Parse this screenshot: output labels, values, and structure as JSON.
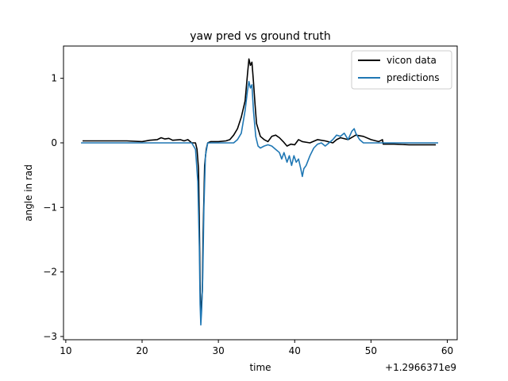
{
  "chart_data": {
    "type": "line",
    "title": "yaw pred vs ground truth",
    "xlabel": "time",
    "ylabel": "angle in rad",
    "x_offset_label": "+1.2966371e9",
    "xlim": [
      9.7,
      61.3
    ],
    "ylim": [
      -3.05,
      1.5
    ],
    "xticks": [
      10,
      20,
      30,
      40,
      50,
      60
    ],
    "yticks": [
      1,
      0,
      -1,
      -2,
      -3
    ],
    "xtick_labels": [
      "10",
      "20",
      "30",
      "40",
      "50",
      "60"
    ],
    "ytick_labels": [
      "1",
      "0",
      "−1",
      "−2",
      "−3"
    ],
    "legend_position": "top-right",
    "grid": false,
    "series": [
      {
        "name": "vicon data",
        "color": "#000000",
        "points": [
          [
            12.2,
            0.03
          ],
          [
            15,
            0.03
          ],
          [
            18,
            0.03
          ],
          [
            20,
            0.02
          ],
          [
            21,
            0.04
          ],
          [
            22,
            0.05
          ],
          [
            22.5,
            0.08
          ],
          [
            23,
            0.06
          ],
          [
            23.5,
            0.07
          ],
          [
            24,
            0.04
          ],
          [
            25,
            0.05
          ],
          [
            25.5,
            0.03
          ],
          [
            26,
            0.05
          ],
          [
            26.5,
            0.0
          ],
          [
            27,
            0.0
          ],
          [
            27.2,
            -0.1
          ],
          [
            27.4,
            -0.4
          ],
          [
            27.5,
            -1.2
          ],
          [
            27.6,
            -2.2
          ],
          [
            27.7,
            -2.7
          ],
          [
            27.8,
            -2.5
          ],
          [
            27.9,
            -2.3
          ],
          [
            28,
            -1.4
          ],
          [
            28.2,
            -0.35
          ],
          [
            28.4,
            -0.1
          ],
          [
            28.6,
            0.0
          ],
          [
            29,
            0.02
          ],
          [
            30,
            0.02
          ],
          [
            31,
            0.03
          ],
          [
            31.5,
            0.05
          ],
          [
            32,
            0.12
          ],
          [
            32.5,
            0.22
          ],
          [
            33,
            0.4
          ],
          [
            33.5,
            0.65
          ],
          [
            33.8,
            1.05
          ],
          [
            34,
            1.3
          ],
          [
            34.2,
            1.2
          ],
          [
            34.4,
            1.25
          ],
          [
            34.6,
            0.95
          ],
          [
            34.8,
            0.6
          ],
          [
            35,
            0.3
          ],
          [
            35.5,
            0.1
          ],
          [
            36,
            0.05
          ],
          [
            36.5,
            0.02
          ],
          [
            37,
            0.1
          ],
          [
            37.5,
            0.12
          ],
          [
            38,
            0.08
          ],
          [
            38.5,
            0.02
          ],
          [
            39,
            -0.05
          ],
          [
            39.5,
            -0.02
          ],
          [
            40,
            -0.03
          ],
          [
            40.5,
            0.05
          ],
          [
            41,
            0.02
          ],
          [
            42,
            0.0
          ],
          [
            43,
            0.05
          ],
          [
            44,
            0.03
          ],
          [
            45,
            0.0
          ],
          [
            45.5,
            0.05
          ],
          [
            46,
            0.08
          ],
          [
            47,
            0.05
          ],
          [
            48,
            0.12
          ],
          [
            49,
            0.1
          ],
          [
            50,
            0.05
          ],
          [
            51,
            0.02
          ],
          [
            51.5,
            0.05
          ],
          [
            51.6,
            -0.02
          ],
          [
            53,
            -0.02
          ],
          [
            55,
            -0.03
          ],
          [
            57,
            -0.03
          ],
          [
            58.5,
            -0.03
          ]
        ]
      },
      {
        "name": "predictions",
        "color": "#1f77b4",
        "points": [
          [
            12,
            0.0
          ],
          [
            16,
            0.0
          ],
          [
            20,
            0.0
          ],
          [
            24,
            0.0
          ],
          [
            26.5,
            0.0
          ],
          [
            27,
            -0.1
          ],
          [
            27.3,
            -0.6
          ],
          [
            27.5,
            -1.6
          ],
          [
            27.6,
            -2.5
          ],
          [
            27.7,
            -2.82
          ],
          [
            27.8,
            -2.6
          ],
          [
            27.95,
            -2.1
          ],
          [
            28.1,
            -1.0
          ],
          [
            28.3,
            -0.2
          ],
          [
            28.6,
            0.0
          ],
          [
            29,
            0.0
          ],
          [
            30,
            0.0
          ],
          [
            31,
            0.0
          ],
          [
            32,
            0.0
          ],
          [
            32.5,
            0.05
          ],
          [
            33,
            0.15
          ],
          [
            33.5,
            0.5
          ],
          [
            33.8,
            0.8
          ],
          [
            34,
            0.95
          ],
          [
            34.2,
            0.85
          ],
          [
            34.4,
            0.9
          ],
          [
            34.6,
            0.5
          ],
          [
            34.9,
            0.1
          ],
          [
            35.2,
            -0.05
          ],
          [
            35.5,
            -0.08
          ],
          [
            36,
            -0.05
          ],
          [
            36.5,
            -0.03
          ],
          [
            37,
            -0.05
          ],
          [
            37.5,
            -0.1
          ],
          [
            38,
            -0.15
          ],
          [
            38.3,
            -0.25
          ],
          [
            38.6,
            -0.15
          ],
          [
            39,
            -0.3
          ],
          [
            39.3,
            -0.2
          ],
          [
            39.6,
            -0.35
          ],
          [
            39.9,
            -0.2
          ],
          [
            40.2,
            -0.3
          ],
          [
            40.5,
            -0.25
          ],
          [
            40.8,
            -0.4
          ],
          [
            41,
            -0.52
          ],
          [
            41.2,
            -0.4
          ],
          [
            41.5,
            -0.35
          ],
          [
            42,
            -0.2
          ],
          [
            42.5,
            -0.08
          ],
          [
            43,
            -0.02
          ],
          [
            43.5,
            0.0
          ],
          [
            44,
            -0.05
          ],
          [
            44.5,
            0.0
          ],
          [
            45,
            0.05
          ],
          [
            45.5,
            0.12
          ],
          [
            46,
            0.1
          ],
          [
            46.5,
            0.15
          ],
          [
            47,
            0.05
          ],
          [
            47.5,
            0.18
          ],
          [
            47.8,
            0.22
          ],
          [
            48,
            0.15
          ],
          [
            48.5,
            0.05
          ],
          [
            49,
            0.0
          ],
          [
            50,
            0.0
          ],
          [
            52,
            0.0
          ],
          [
            55,
            0.0
          ],
          [
            58.8,
            0.0
          ]
        ]
      }
    ]
  }
}
